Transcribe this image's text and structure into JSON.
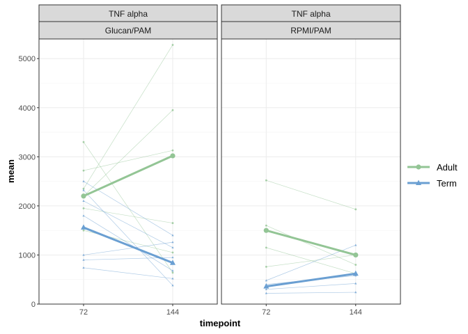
{
  "chart_data": {
    "type": "line",
    "xlabel": "timepoint",
    "ylabel": "mean",
    "x_categories": [
      "72",
      "144"
    ],
    "ylim": [
      0,
      5400
    ],
    "y_ticks": [
      0,
      1000,
      2000,
      3000,
      4000,
      5000
    ],
    "grid": true,
    "legend_position": "right",
    "legend": [
      {
        "name": "Adult",
        "color": "#93c595",
        "marker": "circle"
      },
      {
        "name": "Term",
        "color": "#6a9fd2",
        "marker": "triangle"
      }
    ],
    "panels": [
      {
        "strip_top": "TNF alpha",
        "strip_bottom": "Glucan/PAM",
        "mean_series": [
          {
            "name": "Adult",
            "values": [
              2200,
              3020
            ]
          },
          {
            "name": "Term",
            "values": [
              1560,
              840
            ]
          }
        ],
        "individual_series": [
          {
            "group": "Adult",
            "values": [
              3300,
              640
            ]
          },
          {
            "group": "Adult",
            "values": [
              2720,
              3130
            ]
          },
          {
            "group": "Adult",
            "values": [
              2350,
              5280
            ]
          },
          {
            "group": "Adult",
            "values": [
              2200,
              3950
            ]
          },
          {
            "group": "Adult",
            "values": [
              1950,
              1650
            ]
          },
          {
            "group": "Adult",
            "values": [
              1500,
              1050
            ]
          },
          {
            "group": "Term",
            "values": [
              2500,
              1400
            ]
          },
          {
            "group": "Term",
            "values": [
              2320,
              380
            ]
          },
          {
            "group": "Term",
            "values": [
              2100,
              1150
            ]
          },
          {
            "group": "Term",
            "values": [
              1800,
              680
            ]
          },
          {
            "group": "Term",
            "values": [
              1000,
              1260
            ]
          },
          {
            "group": "Term",
            "values": [
              900,
              950
            ]
          },
          {
            "group": "Term",
            "values": [
              740,
              520
            ]
          }
        ]
      },
      {
        "strip_top": "TNF alpha",
        "strip_bottom": "RPMI/PAM",
        "mean_series": [
          {
            "name": "Adult",
            "values": [
              1500,
              1000
            ]
          },
          {
            "name": "Term",
            "values": [
              360,
              620
            ]
          }
        ],
        "individual_series": [
          {
            "group": "Adult",
            "values": [
              2520,
              1930
            ]
          },
          {
            "group": "Adult",
            "values": [
              1600,
              800
            ]
          },
          {
            "group": "Adult",
            "values": [
              1150,
              620
            ]
          },
          {
            "group": "Adult",
            "values": [
              760,
              1000
            ]
          },
          {
            "group": "Term",
            "values": [
              480,
              1200
            ]
          },
          {
            "group": "Term",
            "values": [
              400,
              580
            ]
          },
          {
            "group": "Term",
            "values": [
              300,
              420
            ]
          },
          {
            "group": "Term",
            "values": [
              220,
              240
            ]
          }
        ]
      }
    ]
  }
}
